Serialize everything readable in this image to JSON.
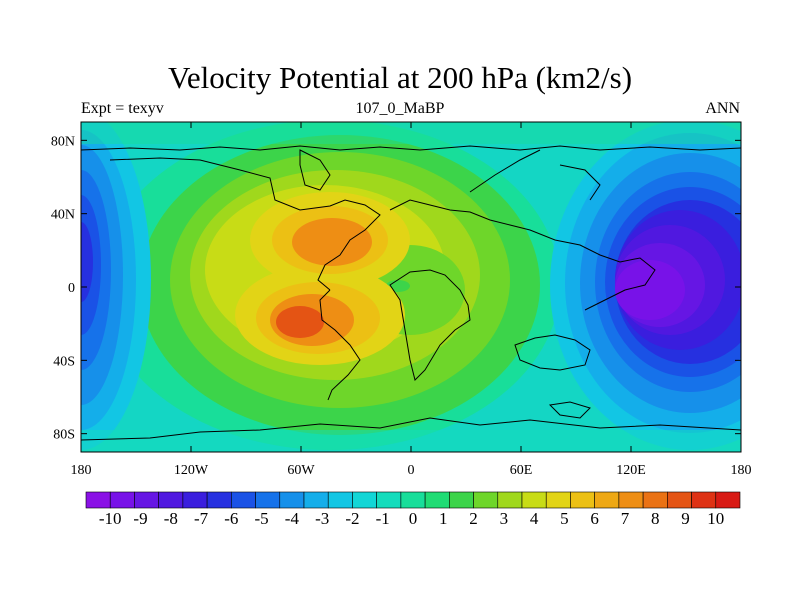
{
  "header": {
    "title": "Velocity Potential at 200 hPa (km2/s)",
    "left": "Expt = texyv",
    "center": "107_0_MaBP",
    "right": "ANN"
  },
  "map": {
    "projection": "cylindrical-equidistant",
    "lon_range": [
      -180,
      180
    ],
    "lat_range": [
      -90,
      90
    ],
    "x_tick_labels": [
      "180",
      "120W",
      "60W",
      "0",
      "60E",
      "120E",
      "180"
    ],
    "y_tick_labels": [
      "80N",
      "40N",
      "0",
      "40S",
      "80S"
    ],
    "field": "velocity potential",
    "units": "km2/s",
    "features": [
      {
        "kind": "maximum",
        "lon": -50,
        "lat": 20,
        "value": 8
      },
      {
        "kind": "maximum",
        "lon": -70,
        "lat": -20,
        "value": 9
      },
      {
        "kind": "minimum",
        "lon": 150,
        "lat": 5,
        "value": -10
      },
      {
        "kind": "minimum",
        "lon": -180,
        "lat": 10,
        "value": -6
      }
    ]
  },
  "colorbar": {
    "labels": [
      "-10",
      "-9",
      "-8",
      "-7",
      "-6",
      "-5",
      "-4",
      "-3",
      "-2",
      "-1",
      "0",
      "1",
      "2",
      "3",
      "4",
      "5",
      "6",
      "7",
      "8",
      "9",
      "10"
    ],
    "colors": [
      "#8a11e6",
      "#7812e8",
      "#6616e4",
      "#5018e0",
      "#3a1ede",
      "#2630e0",
      "#1a52e6",
      "#1672ea",
      "#1690ea",
      "#14aeea",
      "#12c6e4",
      "#12d6d6",
      "#14dcbc",
      "#18de9a",
      "#20dc74",
      "#3cd44a",
      "#6ed62a",
      "#a0d81c",
      "#c8dc16",
      "#e2d416",
      "#ecc014",
      "#eea814",
      "#ee8e14",
      "#ea7214",
      "#e45414",
      "#de3214",
      "#d81a14"
    ]
  }
}
